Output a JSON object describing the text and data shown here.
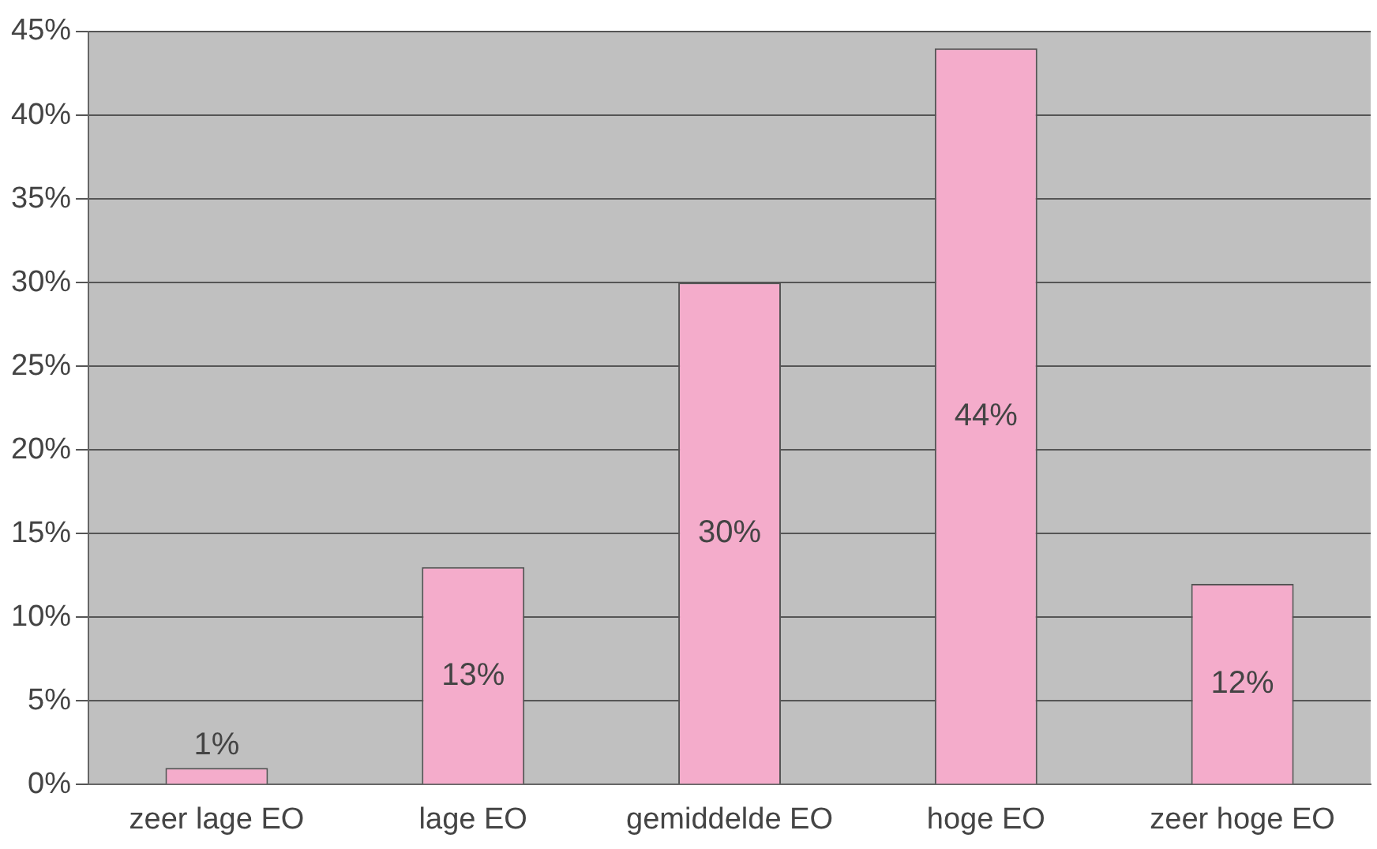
{
  "chart_data": {
    "type": "bar",
    "categories": [
      "zeer lage EO",
      "lage EO",
      "gemiddelde EO",
      "hoge EO",
      "zeer hoge EO"
    ],
    "values": [
      1,
      13,
      30,
      44,
      12
    ],
    "value_labels": [
      "1%",
      "13%",
      "30%",
      "44%",
      "12%"
    ],
    "color": "#f4accb",
    "ylim": [
      0,
      45
    ],
    "yticks": [
      {
        "value": 0,
        "label": "0%"
      },
      {
        "value": 5,
        "label": "5%"
      },
      {
        "value": 10,
        "label": "10%"
      },
      {
        "value": 15,
        "label": "15%"
      },
      {
        "value": 20,
        "label": "20%"
      },
      {
        "value": 25,
        "label": "25%"
      },
      {
        "value": 30,
        "label": "30%"
      },
      {
        "value": 35,
        "label": "35%"
      },
      {
        "value": 40,
        "label": "40%"
      },
      {
        "value": 45,
        "label": "45%"
      }
    ],
    "grid": "y"
  }
}
